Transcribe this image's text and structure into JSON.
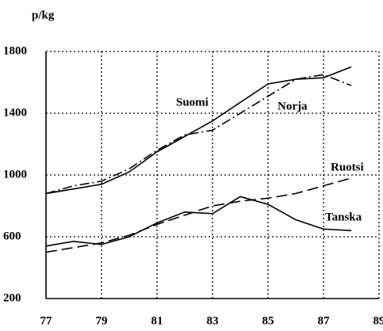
{
  "chart_data": {
    "type": "line",
    "y_label": "p/kg",
    "x": [
      77,
      78,
      79,
      80,
      81,
      82,
      83,
      84,
      85,
      86,
      87,
      88
    ],
    "xlim": [
      77,
      89
    ],
    "xticks": [
      77,
      79,
      81,
      83,
      85,
      87,
      89
    ],
    "ylim": [
      200,
      1800
    ],
    "yticks": [
      200,
      600,
      1000,
      1400,
      1800
    ],
    "grid": true,
    "series": [
      {
        "name": "Suomi",
        "color": "#000000",
        "line_style": "solid",
        "values": [
          880,
          910,
          940,
          1020,
          1150,
          1250,
          1350,
          1470,
          1590,
          1620,
          1630,
          1700
        ]
      },
      {
        "name": "Norja",
        "color": "#000000",
        "line_style": "dashdot",
        "values": [
          880,
          930,
          960,
          1040,
          1160,
          1260,
          1290,
          1400,
          1510,
          1620,
          1650,
          1580
        ]
      },
      {
        "name": "Ruotsi",
        "color": "#000000",
        "line_style": "dashed",
        "values": [
          500,
          530,
          560,
          610,
          680,
          740,
          800,
          830,
          850,
          880,
          930,
          980
        ]
      },
      {
        "name": "Tanska",
        "color": "#000000",
        "line_style": "solid",
        "values": [
          540,
          570,
          550,
          600,
          690,
          760,
          750,
          860,
          810,
          710,
          650,
          640
        ]
      }
    ]
  }
}
